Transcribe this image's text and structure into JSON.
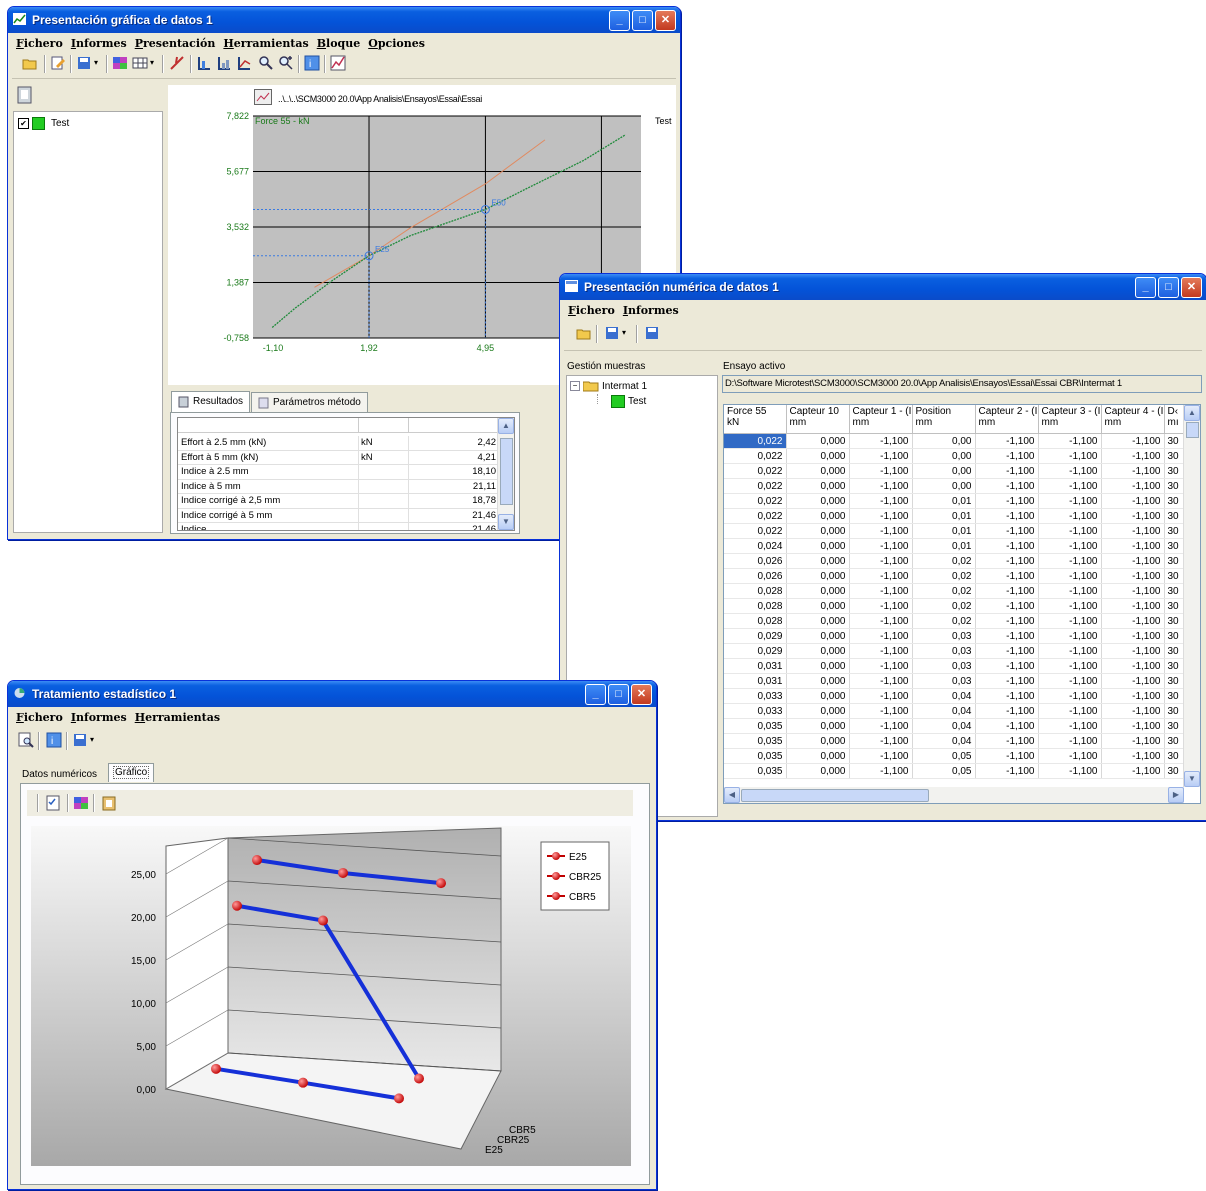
{
  "win_graphic": {
    "title": "Presentación gráfica de datos 1",
    "menu": [
      "Fichero",
      "Informes",
      "Presentación",
      "Herramientas",
      "Bloque",
      "Opciones"
    ],
    "tree_item": "Test",
    "path": "..\\..\\..\\SCM3000 20.0\\App Analisis\\Ensayos\\Essai\\Essai",
    "chart": {
      "series_label": "Force 55 - kN",
      "legend": "Test",
      "y_ticks": [
        "7,822",
        "5,677",
        "3,532",
        "1,387",
        "-0,758"
      ],
      "x_ticks": [
        "-1,10",
        "1,92",
        "4,95",
        "7,97"
      ],
      "annot_e25": "E25",
      "annot_e50": "E50"
    },
    "tabs": [
      "Resultados",
      "Parámetros método"
    ],
    "results": [
      {
        "name": "Effort à 2.5 mm (kN)",
        "unit": "kN",
        "value": "2,42"
      },
      {
        "name": "Effort à 5 mm (kN)",
        "unit": "kN",
        "value": "4,21"
      },
      {
        "name": "Indice à 2.5 mm",
        "unit": "",
        "value": "18,10"
      },
      {
        "name": "Indice à 5 mm",
        "unit": "",
        "value": "21,11"
      },
      {
        "name": "Indice corrigé à 2,5 mm",
        "unit": "",
        "value": "18,78"
      },
      {
        "name": "Indice corrigé à 5 mm",
        "unit": "",
        "value": "21,46"
      },
      {
        "name": "Indice",
        "unit": "",
        "value": "21,46"
      }
    ]
  },
  "win_numeric": {
    "title": "Presentación numérica de datos 1",
    "menu": [
      "Fichero",
      "Informes"
    ],
    "samples_label": "Gestión muestras",
    "tree_root": "Intermat 1",
    "tree_child": "Test",
    "active_label": "Ensayo activo",
    "active_path": "D:\\Software Microtest\\SCM3000\\SCM3000 20.0\\App Analisis\\Ensayos\\Essai\\Essai CBR\\Intermat 1",
    "columns": [
      {
        "name": "Force 55",
        "unit": "kN"
      },
      {
        "name": "Capteur 10",
        "unit": "mm"
      },
      {
        "name": "Capteur 1 - (I",
        "unit": "mm"
      },
      {
        "name": "Position",
        "unit": "mm"
      },
      {
        "name": "Capteur 2 - (I",
        "unit": "mm"
      },
      {
        "name": "Capteur 3 - (I",
        "unit": "mm"
      },
      {
        "name": "Capteur 4 - (I",
        "unit": "mm"
      },
      {
        "name": "D‹",
        "unit": "mı"
      }
    ],
    "rows": [
      [
        "0,022",
        "0,000",
        "-1,100",
        "0,00",
        "-1,100",
        "-1,100",
        "-1,100",
        "30"
      ],
      [
        "0,022",
        "0,000",
        "-1,100",
        "0,00",
        "-1,100",
        "-1,100",
        "-1,100",
        "30"
      ],
      [
        "0,022",
        "0,000",
        "-1,100",
        "0,00",
        "-1,100",
        "-1,100",
        "-1,100",
        "30"
      ],
      [
        "0,022",
        "0,000",
        "-1,100",
        "0,00",
        "-1,100",
        "-1,100",
        "-1,100",
        "30"
      ],
      [
        "0,022",
        "0,000",
        "-1,100",
        "0,01",
        "-1,100",
        "-1,100",
        "-1,100",
        "30"
      ],
      [
        "0,022",
        "0,000",
        "-1,100",
        "0,01",
        "-1,100",
        "-1,100",
        "-1,100",
        "30"
      ],
      [
        "0,022",
        "0,000",
        "-1,100",
        "0,01",
        "-1,100",
        "-1,100",
        "-1,100",
        "30"
      ],
      [
        "0,024",
        "0,000",
        "-1,100",
        "0,01",
        "-1,100",
        "-1,100",
        "-1,100",
        "30"
      ],
      [
        "0,026",
        "0,000",
        "-1,100",
        "0,02",
        "-1,100",
        "-1,100",
        "-1,100",
        "30"
      ],
      [
        "0,026",
        "0,000",
        "-1,100",
        "0,02",
        "-1,100",
        "-1,100",
        "-1,100",
        "30"
      ],
      [
        "0,028",
        "0,000",
        "-1,100",
        "0,02",
        "-1,100",
        "-1,100",
        "-1,100",
        "30"
      ],
      [
        "0,028",
        "0,000",
        "-1,100",
        "0,02",
        "-1,100",
        "-1,100",
        "-1,100",
        "30"
      ],
      [
        "0,028",
        "0,000",
        "-1,100",
        "0,02",
        "-1,100",
        "-1,100",
        "-1,100",
        "30"
      ],
      [
        "0,029",
        "0,000",
        "-1,100",
        "0,03",
        "-1,100",
        "-1,100",
        "-1,100",
        "30"
      ],
      [
        "0,029",
        "0,000",
        "-1,100",
        "0,03",
        "-1,100",
        "-1,100",
        "-1,100",
        "30"
      ],
      [
        "0,031",
        "0,000",
        "-1,100",
        "0,03",
        "-1,100",
        "-1,100",
        "-1,100",
        "30"
      ],
      [
        "0,031",
        "0,000",
        "-1,100",
        "0,03",
        "-1,100",
        "-1,100",
        "-1,100",
        "30"
      ],
      [
        "0,033",
        "0,000",
        "-1,100",
        "0,04",
        "-1,100",
        "-1,100",
        "-1,100",
        "30"
      ],
      [
        "0,033",
        "0,000",
        "-1,100",
        "0,04",
        "-1,100",
        "-1,100",
        "-1,100",
        "30"
      ],
      [
        "0,035",
        "0,000",
        "-1,100",
        "0,04",
        "-1,100",
        "-1,100",
        "-1,100",
        "30"
      ],
      [
        "0,035",
        "0,000",
        "-1,100",
        "0,04",
        "-1,100",
        "-1,100",
        "-1,100",
        "30"
      ],
      [
        "0,035",
        "0,000",
        "-1,100",
        "0,05",
        "-1,100",
        "-1,100",
        "-1,100",
        "30"
      ],
      [
        "0,035",
        "0,000",
        "-1,100",
        "0,05",
        "-1,100",
        "-1,100",
        "-1,100",
        "30"
      ]
    ]
  },
  "win_stats": {
    "title": "Tratamiento estadístico 1",
    "menu": [
      "Fichero",
      "Informes",
      "Herramientas"
    ],
    "tabs": [
      "Datos numéricos",
      "Gráfico"
    ],
    "chart": {
      "y_ticks": [
        "25,00",
        "20,00",
        "15,00",
        "10,00",
        "5,00",
        "0,00"
      ],
      "depth_labels": [
        "CBR5",
        "CBR25",
        "E25"
      ],
      "legend": [
        "E25",
        "CBR25",
        "CBR5"
      ]
    }
  },
  "chart_data": [
    {
      "type": "line",
      "series": [
        {
          "name": "Test",
          "x": [
            -0.6,
            0.0,
            1.0,
            1.92,
            3.0,
            4.95,
            6.0,
            7.5,
            8.6
          ],
          "values": [
            -0.35,
            0.4,
            1.5,
            2.42,
            3.2,
            4.21,
            5.0,
            6.1,
            7.1
          ]
        },
        {
          "name": "",
          "x": [
            0.5,
            1.92,
            3.0,
            4.95,
            6.5
          ],
          "values": [
            1.2,
            2.42,
            3.5,
            5.2,
            6.9
          ]
        }
      ],
      "title": "",
      "xlabel": "",
      "ylabel": "Force 55 - kN",
      "xlim": [
        -1.1,
        9.0
      ],
      "ylim": [
        -0.758,
        7.822
      ]
    },
    {
      "type": "line",
      "categories": [
        "1",
        "2",
        "3"
      ],
      "series": [
        {
          "name": "E25",
          "values": [
            2.4,
            2.2,
            1.8
          ]
        },
        {
          "name": "CBR25",
          "values": [
            18.1,
            17.8,
            2.0
          ]
        },
        {
          "name": "CBR5",
          "values": [
            21.1,
            21.0,
            21.2
          ]
        }
      ],
      "ylim": [
        0,
        25
      ]
    }
  ]
}
